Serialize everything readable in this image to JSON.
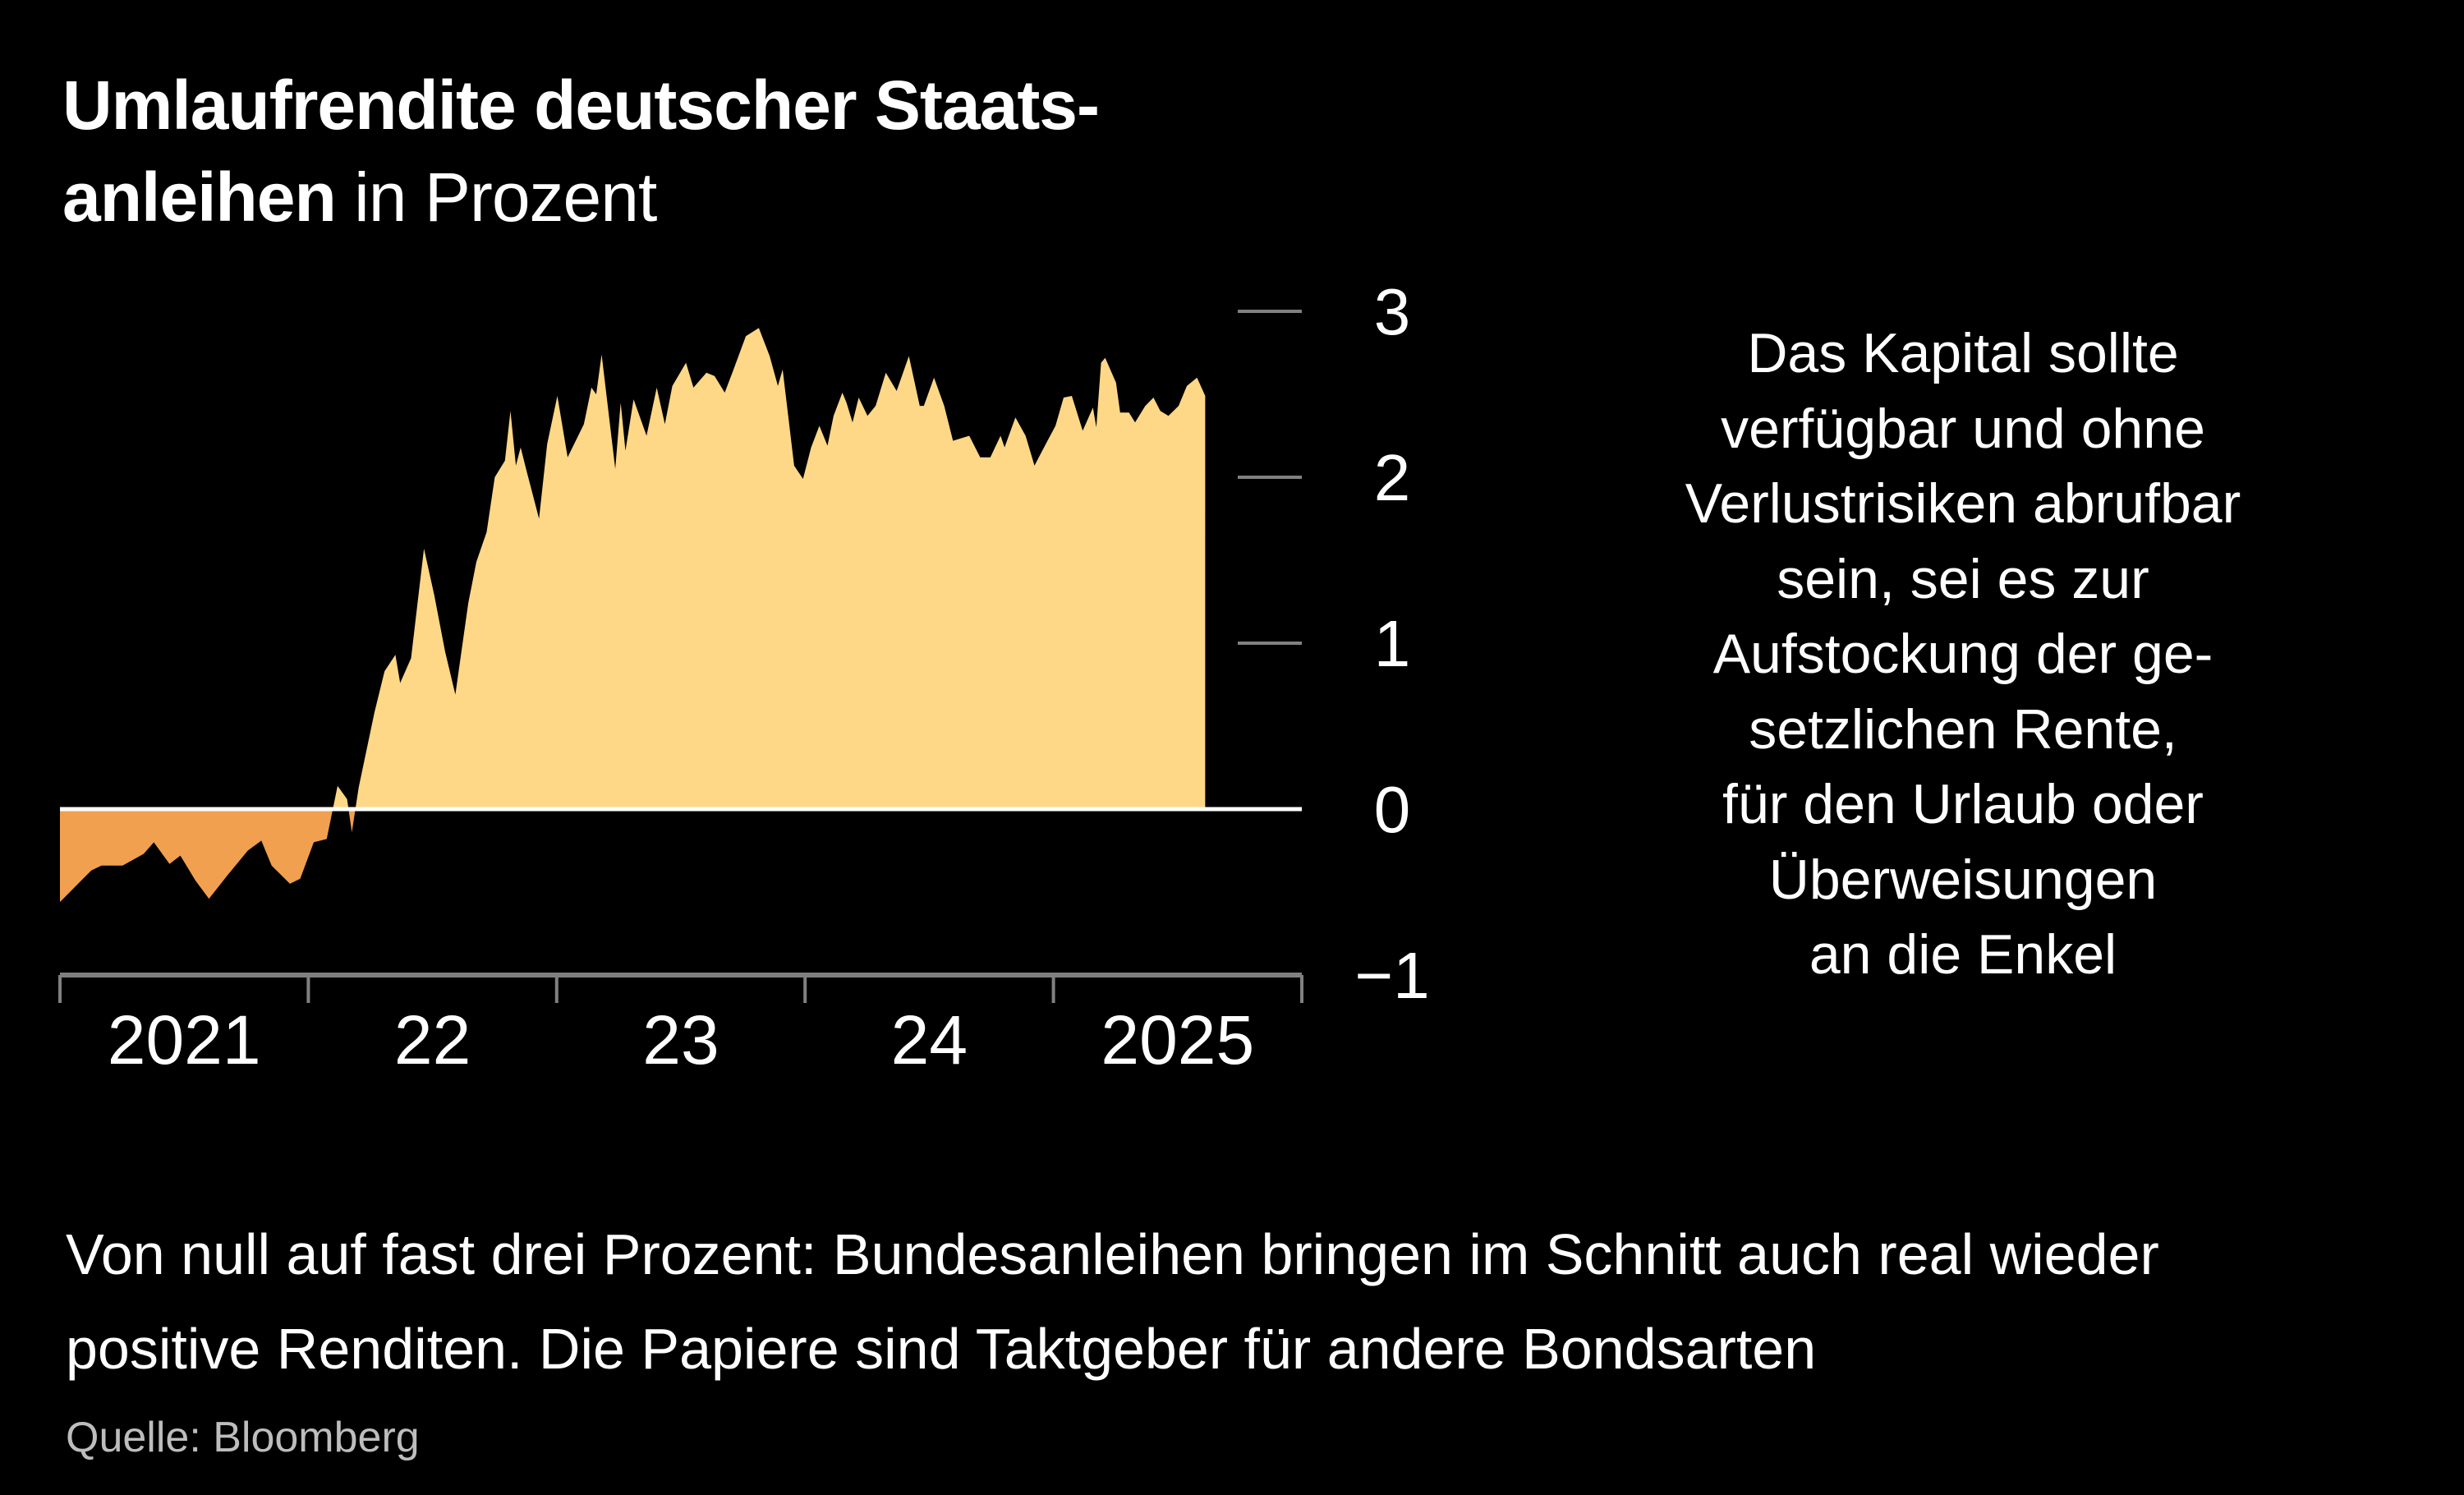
{
  "title": {
    "bold": "Umlaufrendite deutscher Staats-",
    "bold_line2": "anleihen",
    "light": "in Prozent"
  },
  "side_text": [
    "Das Kapital sollte",
    "verfügbar und ohne",
    "Verlustrisiken abrufbar",
    "sein, sei es zur",
    "Aufstockung der ge-",
    "setzlichen Rente,",
    "für den Urlaub oder",
    "Überweisungen",
    "an die Enkel"
  ],
  "caption": {
    "line1": "Von null auf fast drei Prozent: Bundesanleihen bringen im Schnitt auch real wieder",
    "line2": "positive Renditen. Die Papiere sind Taktgeber für andere Bondsarten"
  },
  "source": "Quelle: Bloomberg",
  "chart_data": {
    "type": "area",
    "title": "Umlaufrendite deutscher Staatsanleihen in Prozent",
    "xlabel": "",
    "ylabel": "",
    "xlim": [
      "2021-01-01",
      "2026-01-01"
    ],
    "ylim": [
      -1,
      3
    ],
    "y_ticks": [
      "3",
      "2",
      "1",
      "0",
      "−1"
    ],
    "y_tick_values": [
      3,
      2,
      1,
      0,
      -1
    ],
    "x_tick_labels": [
      "2021",
      "22",
      "23",
      "24",
      "2025"
    ],
    "x_label_years": [
      2021,
      2022,
      2023,
      2024,
      2025
    ],
    "grid": false,
    "legend": "none",
    "colors": {
      "positive": "#FED886",
      "negative": "#F0A04F",
      "zero_line": "#FFFFFF",
      "axis": "#808080",
      "background": "#000000"
    },
    "points": [
      [
        "2021-01-01",
        -0.56
      ],
      [
        "2021-02-16",
        -0.37
      ],
      [
        "2021-03-03",
        -0.34
      ],
      [
        "2021-04-03",
        -0.34
      ],
      [
        "2021-05-04",
        -0.27
      ],
      [
        "2021-05-19",
        -0.2
      ],
      [
        "2021-06-11",
        -0.33
      ],
      [
        "2021-06-27",
        -0.28
      ],
      [
        "2021-07-19",
        -0.43
      ],
      [
        "2021-08-08",
        -0.54
      ],
      [
        "2021-09-04",
        -0.4
      ],
      [
        "2021-10-04",
        -0.25
      ],
      [
        "2021-10-24",
        -0.19
      ],
      [
        "2021-11-08",
        -0.34
      ],
      [
        "2021-12-05",
        -0.45
      ],
      [
        "2021-12-20",
        -0.42
      ],
      [
        "2022-01-09",
        -0.2
      ],
      [
        "2022-01-28",
        -0.18
      ],
      [
        "2022-02-13",
        0.14
      ],
      [
        "2022-02-27",
        0.06
      ],
      [
        "2022-03-06",
        -0.14
      ],
      [
        "2022-03-16",
        0.13
      ],
      [
        "2022-04-08",
        0.58
      ],
      [
        "2022-04-23",
        0.83
      ],
      [
        "2022-05-09",
        0.93
      ],
      [
        "2022-05-16",
        0.76
      ],
      [
        "2022-06-01",
        0.91
      ],
      [
        "2022-06-20",
        1.57
      ],
      [
        "2022-07-05",
        1.29
      ],
      [
        "2022-07-21",
        0.95
      ],
      [
        "2022-08-05",
        0.69
      ],
      [
        "2022-08-24",
        1.24
      ],
      [
        "2022-09-05",
        1.49
      ],
      [
        "2022-09-20",
        1.67
      ],
      [
        "2022-10-02",
        2.0
      ],
      [
        "2022-10-17",
        2.1
      ],
      [
        "2022-10-25",
        2.4
      ],
      [
        "2022-11-02",
        2.07
      ],
      [
        "2022-11-09",
        2.18
      ],
      [
        "2022-11-17",
        2.05
      ],
      [
        "2022-12-06",
        1.75
      ],
      [
        "2022-12-18",
        2.2
      ],
      [
        "2023-01-02",
        2.49
      ],
      [
        "2023-01-17",
        2.12
      ],
      [
        "2023-02-10",
        2.32
      ],
      [
        "2023-02-21",
        2.54
      ],
      [
        "2023-02-28",
        2.5
      ],
      [
        "2023-03-08",
        2.74
      ],
      [
        "2023-03-28",
        2.05
      ],
      [
        "2023-04-05",
        2.45
      ],
      [
        "2023-04-12",
        2.16
      ],
      [
        "2023-04-24",
        2.47
      ],
      [
        "2023-05-13",
        2.25
      ],
      [
        "2023-05-28",
        2.54
      ],
      [
        "2023-06-09",
        2.32
      ],
      [
        "2023-06-20",
        2.55
      ],
      [
        "2023-07-10",
        2.69
      ],
      [
        "2023-07-21",
        2.54
      ],
      [
        "2023-08-09",
        2.63
      ],
      [
        "2023-08-21",
        2.61
      ],
      [
        "2023-09-05",
        2.51
      ],
      [
        "2023-09-17",
        2.64
      ],
      [
        "2023-10-06",
        2.85
      ],
      [
        "2023-10-25",
        2.9
      ],
      [
        "2023-11-10",
        2.73
      ],
      [
        "2023-11-22",
        2.55
      ],
      [
        "2023-11-29",
        2.65
      ],
      [
        "2023-12-16",
        2.07
      ],
      [
        "2023-12-29",
        1.99
      ],
      [
        "2024-01-10",
        2.18
      ],
      [
        "2024-01-22",
        2.31
      ],
      [
        "2024-02-03",
        2.19
      ],
      [
        "2024-02-12",
        2.37
      ],
      [
        "2024-02-25",
        2.51
      ],
      [
        "2024-03-02",
        2.45
      ],
      [
        "2024-03-11",
        2.33
      ],
      [
        "2024-03-20",
        2.48
      ],
      [
        "2024-04-02",
        2.37
      ],
      [
        "2024-04-14",
        2.43
      ],
      [
        "2024-04-29",
        2.63
      ],
      [
        "2024-05-15",
        2.52
      ],
      [
        "2024-06-02",
        2.73
      ],
      [
        "2024-06-18",
        2.43
      ],
      [
        "2024-06-24",
        2.43
      ],
      [
        "2024-07-09",
        2.6
      ],
      [
        "2024-07-24",
        2.43
      ],
      [
        "2024-08-06",
        2.22
      ],
      [
        "2024-08-30",
        2.25
      ],
      [
        "2024-09-15",
        2.12
      ],
      [
        "2024-09-30",
        2.12
      ],
      [
        "2024-10-15",
        2.25
      ],
      [
        "2024-10-21",
        2.18
      ],
      [
        "2024-11-06",
        2.36
      ],
      [
        "2024-11-21",
        2.25
      ],
      [
        "2024-12-04",
        2.07
      ],
      [
        "2024-12-22",
        2.21
      ],
      [
        "2025-01-04",
        2.31
      ],
      [
        "2025-01-16",
        2.48
      ],
      [
        "2025-01-28",
        2.49
      ],
      [
        "2025-02-13",
        2.28
      ],
      [
        "2025-02-28",
        2.42
      ],
      [
        "2025-03-05",
        2.3
      ],
      [
        "2025-03-12",
        2.69
      ],
      [
        "2025-03-18",
        2.72
      ],
      [
        "2025-04-03",
        2.57
      ],
      [
        "2025-04-09",
        2.39
      ],
      [
        "2025-04-22",
        2.39
      ],
      [
        "2025-05-01",
        2.33
      ],
      [
        "2025-05-16",
        2.43
      ],
      [
        "2025-05-28",
        2.48
      ],
      [
        "2025-06-07",
        2.4
      ],
      [
        "2025-06-19",
        2.37
      ],
      [
        "2025-07-04",
        2.43
      ],
      [
        "2025-07-16",
        2.55
      ],
      [
        "2025-07-31",
        2.6
      ],
      [
        "2025-08-12",
        2.49
      ]
    ]
  }
}
